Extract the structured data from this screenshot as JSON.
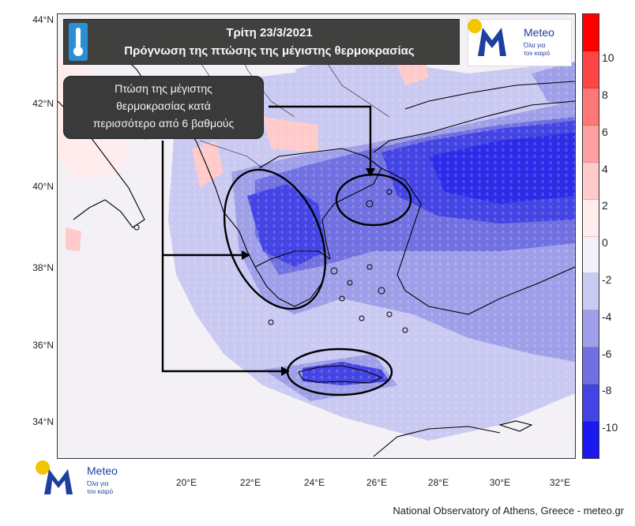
{
  "title": {
    "date": "Τρίτη 23/3/2021",
    "subtitle": "Πρόγνωση της πτώσης της μέγιστης θερμοκρασίας"
  },
  "callout": {
    "lines": [
      "Πτώση της μέγιστης",
      "θερμοκρασίας κατά",
      "περισσότερο από 6 βαθμούς"
    ]
  },
  "logo": {
    "name": "Meteo",
    "tagline_1": "Όλα για",
    "tagline_2": "τον καιρό"
  },
  "axes": {
    "latitudes": [
      "44°N",
      "42°N",
      "40°N",
      "38°N",
      "36°N",
      "34°N"
    ],
    "longitudes": [
      "20°E",
      "22°E",
      "24°E",
      "26°E",
      "28°E",
      "30°E",
      "32°E"
    ]
  },
  "colorbar": {
    "labels": [
      "10",
      "8",
      "6",
      "4",
      "2",
      "0",
      "-2",
      "-4",
      "-6",
      "-8",
      "-10"
    ],
    "colors": [
      "#ff0000",
      "#ff4646",
      "#ff7878",
      "#ffa0a0",
      "#ffcaca",
      "#ffecec",
      "#f3f0fb",
      "#c9c9f2",
      "#9f9fe9",
      "#7070e0",
      "#4444e4",
      "#1a1af0"
    ]
  },
  "credit": "National Observatory of Athens, Greece - meteo.gr"
}
